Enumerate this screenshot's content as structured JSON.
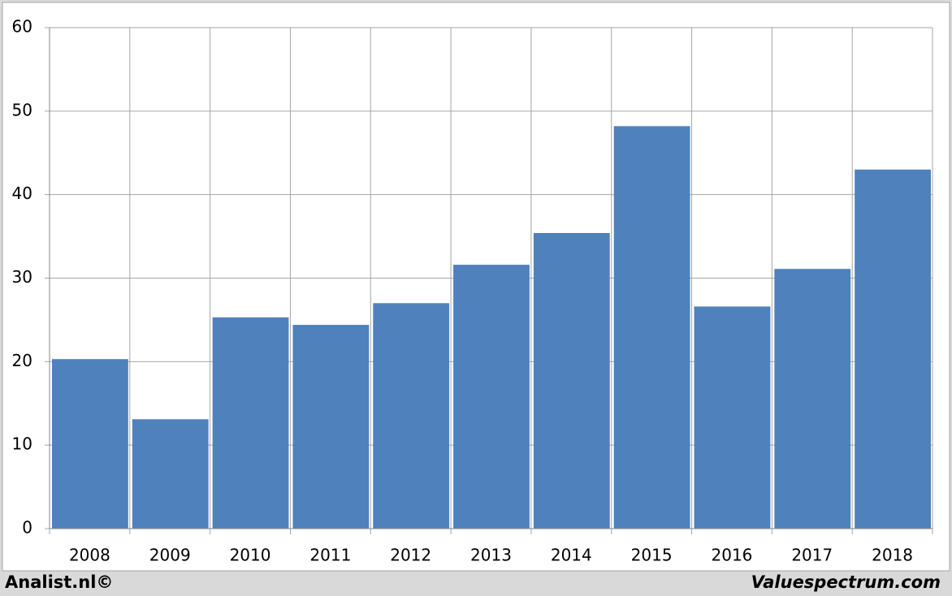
{
  "chart_data": {
    "type": "bar",
    "categories": [
      "2008",
      "2009",
      "2010",
      "2011",
      "2012",
      "2013",
      "2014",
      "2015",
      "2016",
      "2017",
      "2018"
    ],
    "values": [
      20.3,
      13.1,
      25.3,
      24.4,
      27.0,
      31.6,
      35.4,
      48.2,
      26.6,
      31.1,
      43.0
    ],
    "color": "#4f81bd",
    "ylim": [
      0,
      60
    ],
    "yticks": [
      0,
      10,
      20,
      30,
      40,
      50,
      60
    ],
    "grid": true,
    "annotations": [
      "Analist.nl©",
      "Valuespectrum.com"
    ]
  }
}
